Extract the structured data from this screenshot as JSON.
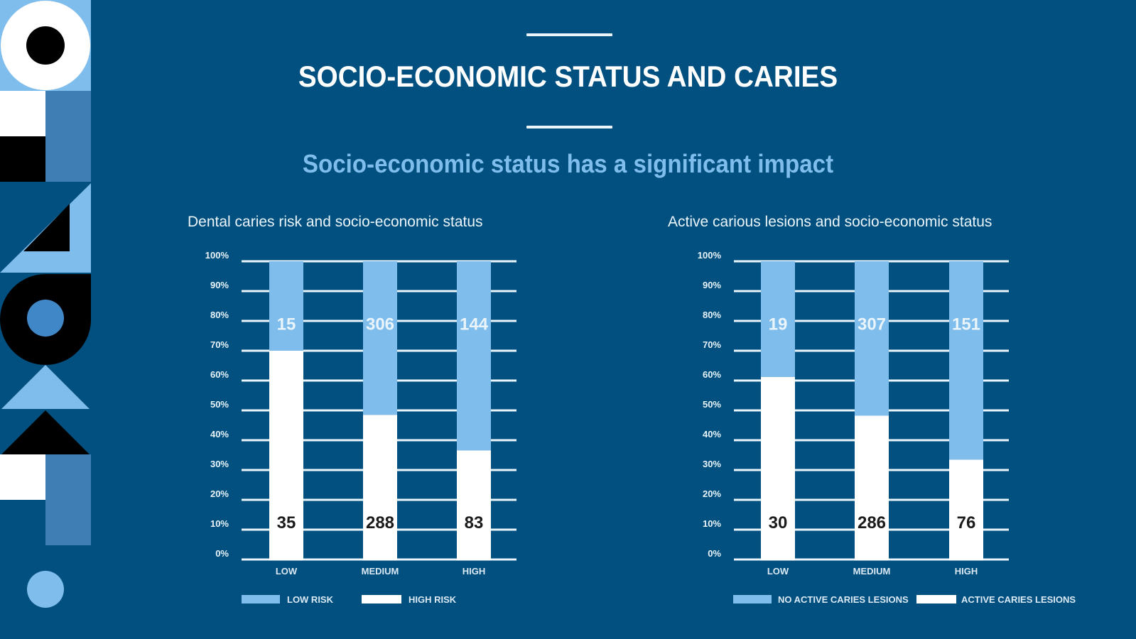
{
  "slide": {
    "title": "SOCIO-ECONOMIC STATUS AND CARIES",
    "subtitle": "Socio-economic status has a significant impact"
  },
  "colors": {
    "background": "#01507f",
    "light_blue": "#7fbdec",
    "white": "#ffffff",
    "steel_blue": "#3f87c6",
    "black": "#000000",
    "gridline": "#eaf4fb"
  },
  "chart_data": [
    {
      "type": "bar",
      "stacked": "percent",
      "title": "Dental caries risk and socio-economic status",
      "categories": [
        "LOW",
        "MEDIUM",
        "HIGH"
      ],
      "series": [
        {
          "name": "HIGH RISK",
          "color": "#ffffff",
          "values": [
            35,
            288,
            83
          ]
        },
        {
          "name": "LOW RISK",
          "color": "#7fbdec",
          "values": [
            15,
            306,
            144
          ]
        }
      ],
      "legend_order": [
        "LOW RISK",
        "HIGH RISK"
      ],
      "xlabel": "",
      "ylabel": "",
      "ylim": [
        0,
        100
      ],
      "yticks": [
        "0%",
        "10%",
        "20%",
        "30%",
        "40%",
        "50%",
        "60%",
        "70%",
        "80%",
        "90%",
        "100%"
      ],
      "grid": true,
      "legend": "bottom"
    },
    {
      "type": "bar",
      "stacked": "percent",
      "title": "Active carious lesions and socio-economic status",
      "categories": [
        "LOW",
        "MEDIUM",
        "HIGH"
      ],
      "series": [
        {
          "name": "ACTIVE CARIES LESIONS",
          "color": "#ffffff",
          "values": [
            30,
            286,
            76
          ]
        },
        {
          "name": "NO ACTIVE CARIES LESIONS",
          "color": "#7fbdec",
          "values": [
            19,
            307,
            151
          ]
        }
      ],
      "legend_order": [
        "NO ACTIVE CARIES LESIONS",
        "ACTIVE CARIES LESIONS"
      ],
      "xlabel": "",
      "ylabel": "",
      "ylim": [
        0,
        100
      ],
      "yticks": [
        "0%",
        "10%",
        "20%",
        "30%",
        "40%",
        "50%",
        "60%",
        "70%",
        "80%",
        "90%",
        "100%"
      ],
      "grid": true,
      "legend": "bottom"
    }
  ]
}
